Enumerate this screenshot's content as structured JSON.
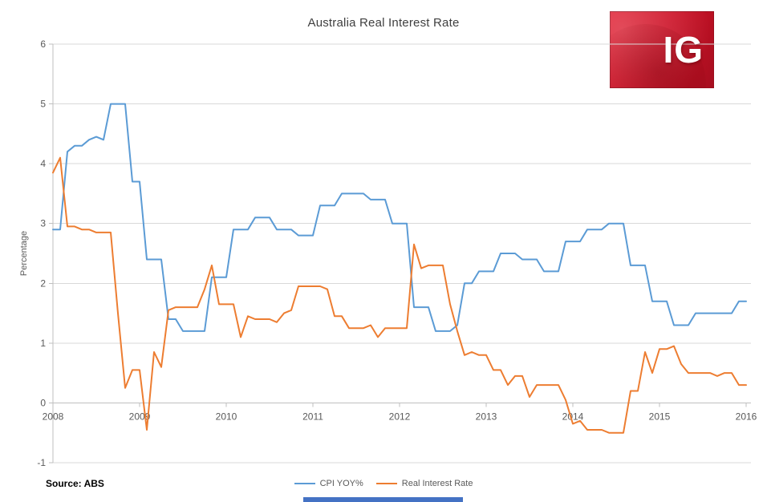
{
  "source_note": "Source: ABS",
  "logo": {
    "text": "IG"
  },
  "colors": {
    "grid": "#D9D9D9",
    "axis": "#BFBFBF",
    "tick_text": "#595959",
    "title_text": "#3F3F3F",
    "cpi_blue": "#5B9BD5",
    "real_orange": "#ED7D31",
    "logo_red": "#CC1126",
    "bottom_bar_blue": "#4472C4"
  },
  "chart_data": {
    "type": "line",
    "title": "Australia Real Interest Rate",
    "xlabel": "",
    "ylabel": "Percentage",
    "xlim": [
      2008,
      2016
    ],
    "ylim": [
      -1,
      6
    ],
    "xticks": [
      2008,
      2009,
      2010,
      2011,
      2012,
      2013,
      2014,
      2015,
      2016
    ],
    "yticks": [
      -1,
      0,
      1,
      2,
      3,
      4,
      5,
      6
    ],
    "grid": true,
    "legend_position": "bottom",
    "x_start_year": 2008,
    "points_per_year": 12,
    "series": [
      {
        "name": "CPI YOY%",
        "color": "#5B9BD5",
        "values": [
          2.9,
          2.9,
          4.2,
          4.3,
          4.3,
          4.4,
          4.45,
          4.4,
          5.0,
          5.0,
          5.0,
          3.7,
          3.7,
          2.4,
          2.4,
          2.4,
          1.4,
          1.4,
          1.2,
          1.2,
          1.2,
          1.2,
          2.1,
          2.1,
          2.1,
          2.9,
          2.9,
          2.9,
          3.1,
          3.1,
          3.1,
          2.9,
          2.9,
          2.9,
          2.8,
          2.8,
          2.8,
          3.3,
          3.3,
          3.3,
          3.5,
          3.5,
          3.5,
          3.5,
          3.4,
          3.4,
          3.4,
          3.0,
          3.0,
          3.0,
          1.6,
          1.6,
          1.6,
          1.2,
          1.2,
          1.2,
          1.3,
          2.0,
          2.0,
          2.2,
          2.2,
          2.2,
          2.5,
          2.5,
          2.5,
          2.4,
          2.4,
          2.4,
          2.2,
          2.2,
          2.2,
          2.7,
          2.7,
          2.7,
          2.9,
          2.9,
          2.9,
          3.0,
          3.0,
          3.0,
          2.3,
          2.3,
          2.3,
          1.7,
          1.7,
          1.7,
          1.3,
          1.3,
          1.3,
          1.5,
          1.5,
          1.5,
          1.5,
          1.5,
          1.5,
          1.7,
          1.7
        ]
      },
      {
        "name": "Real Interest Rate",
        "color": "#ED7D31",
        "values": [
          3.85,
          4.1,
          2.95,
          2.95,
          2.9,
          2.9,
          2.85,
          2.85,
          2.85,
          1.5,
          0.25,
          0.55,
          0.55,
          -0.45,
          0.85,
          0.6,
          1.55,
          1.6,
          1.6,
          1.6,
          1.6,
          1.9,
          2.3,
          1.65,
          1.65,
          1.65,
          1.1,
          1.45,
          1.4,
          1.4,
          1.4,
          1.35,
          1.5,
          1.55,
          1.95,
          1.95,
          1.95,
          1.95,
          1.9,
          1.45,
          1.45,
          1.25,
          1.25,
          1.25,
          1.3,
          1.1,
          1.25,
          1.25,
          1.25,
          1.25,
          2.65,
          2.25,
          2.3,
          2.3,
          2.3,
          1.65,
          1.2,
          0.8,
          0.85,
          0.8,
          0.8,
          0.55,
          0.55,
          0.3,
          0.45,
          0.45,
          0.1,
          0.3,
          0.3,
          0.3,
          0.3,
          0.05,
          -0.35,
          -0.3,
          -0.45,
          -0.45,
          -0.45,
          -0.5,
          -0.5,
          -0.5,
          0.2,
          0.2,
          0.85,
          0.5,
          0.9,
          0.9,
          0.95,
          0.65,
          0.5,
          0.5,
          0.5,
          0.5,
          0.45,
          0.5,
          0.5,
          0.3,
          0.3
        ]
      }
    ]
  }
}
